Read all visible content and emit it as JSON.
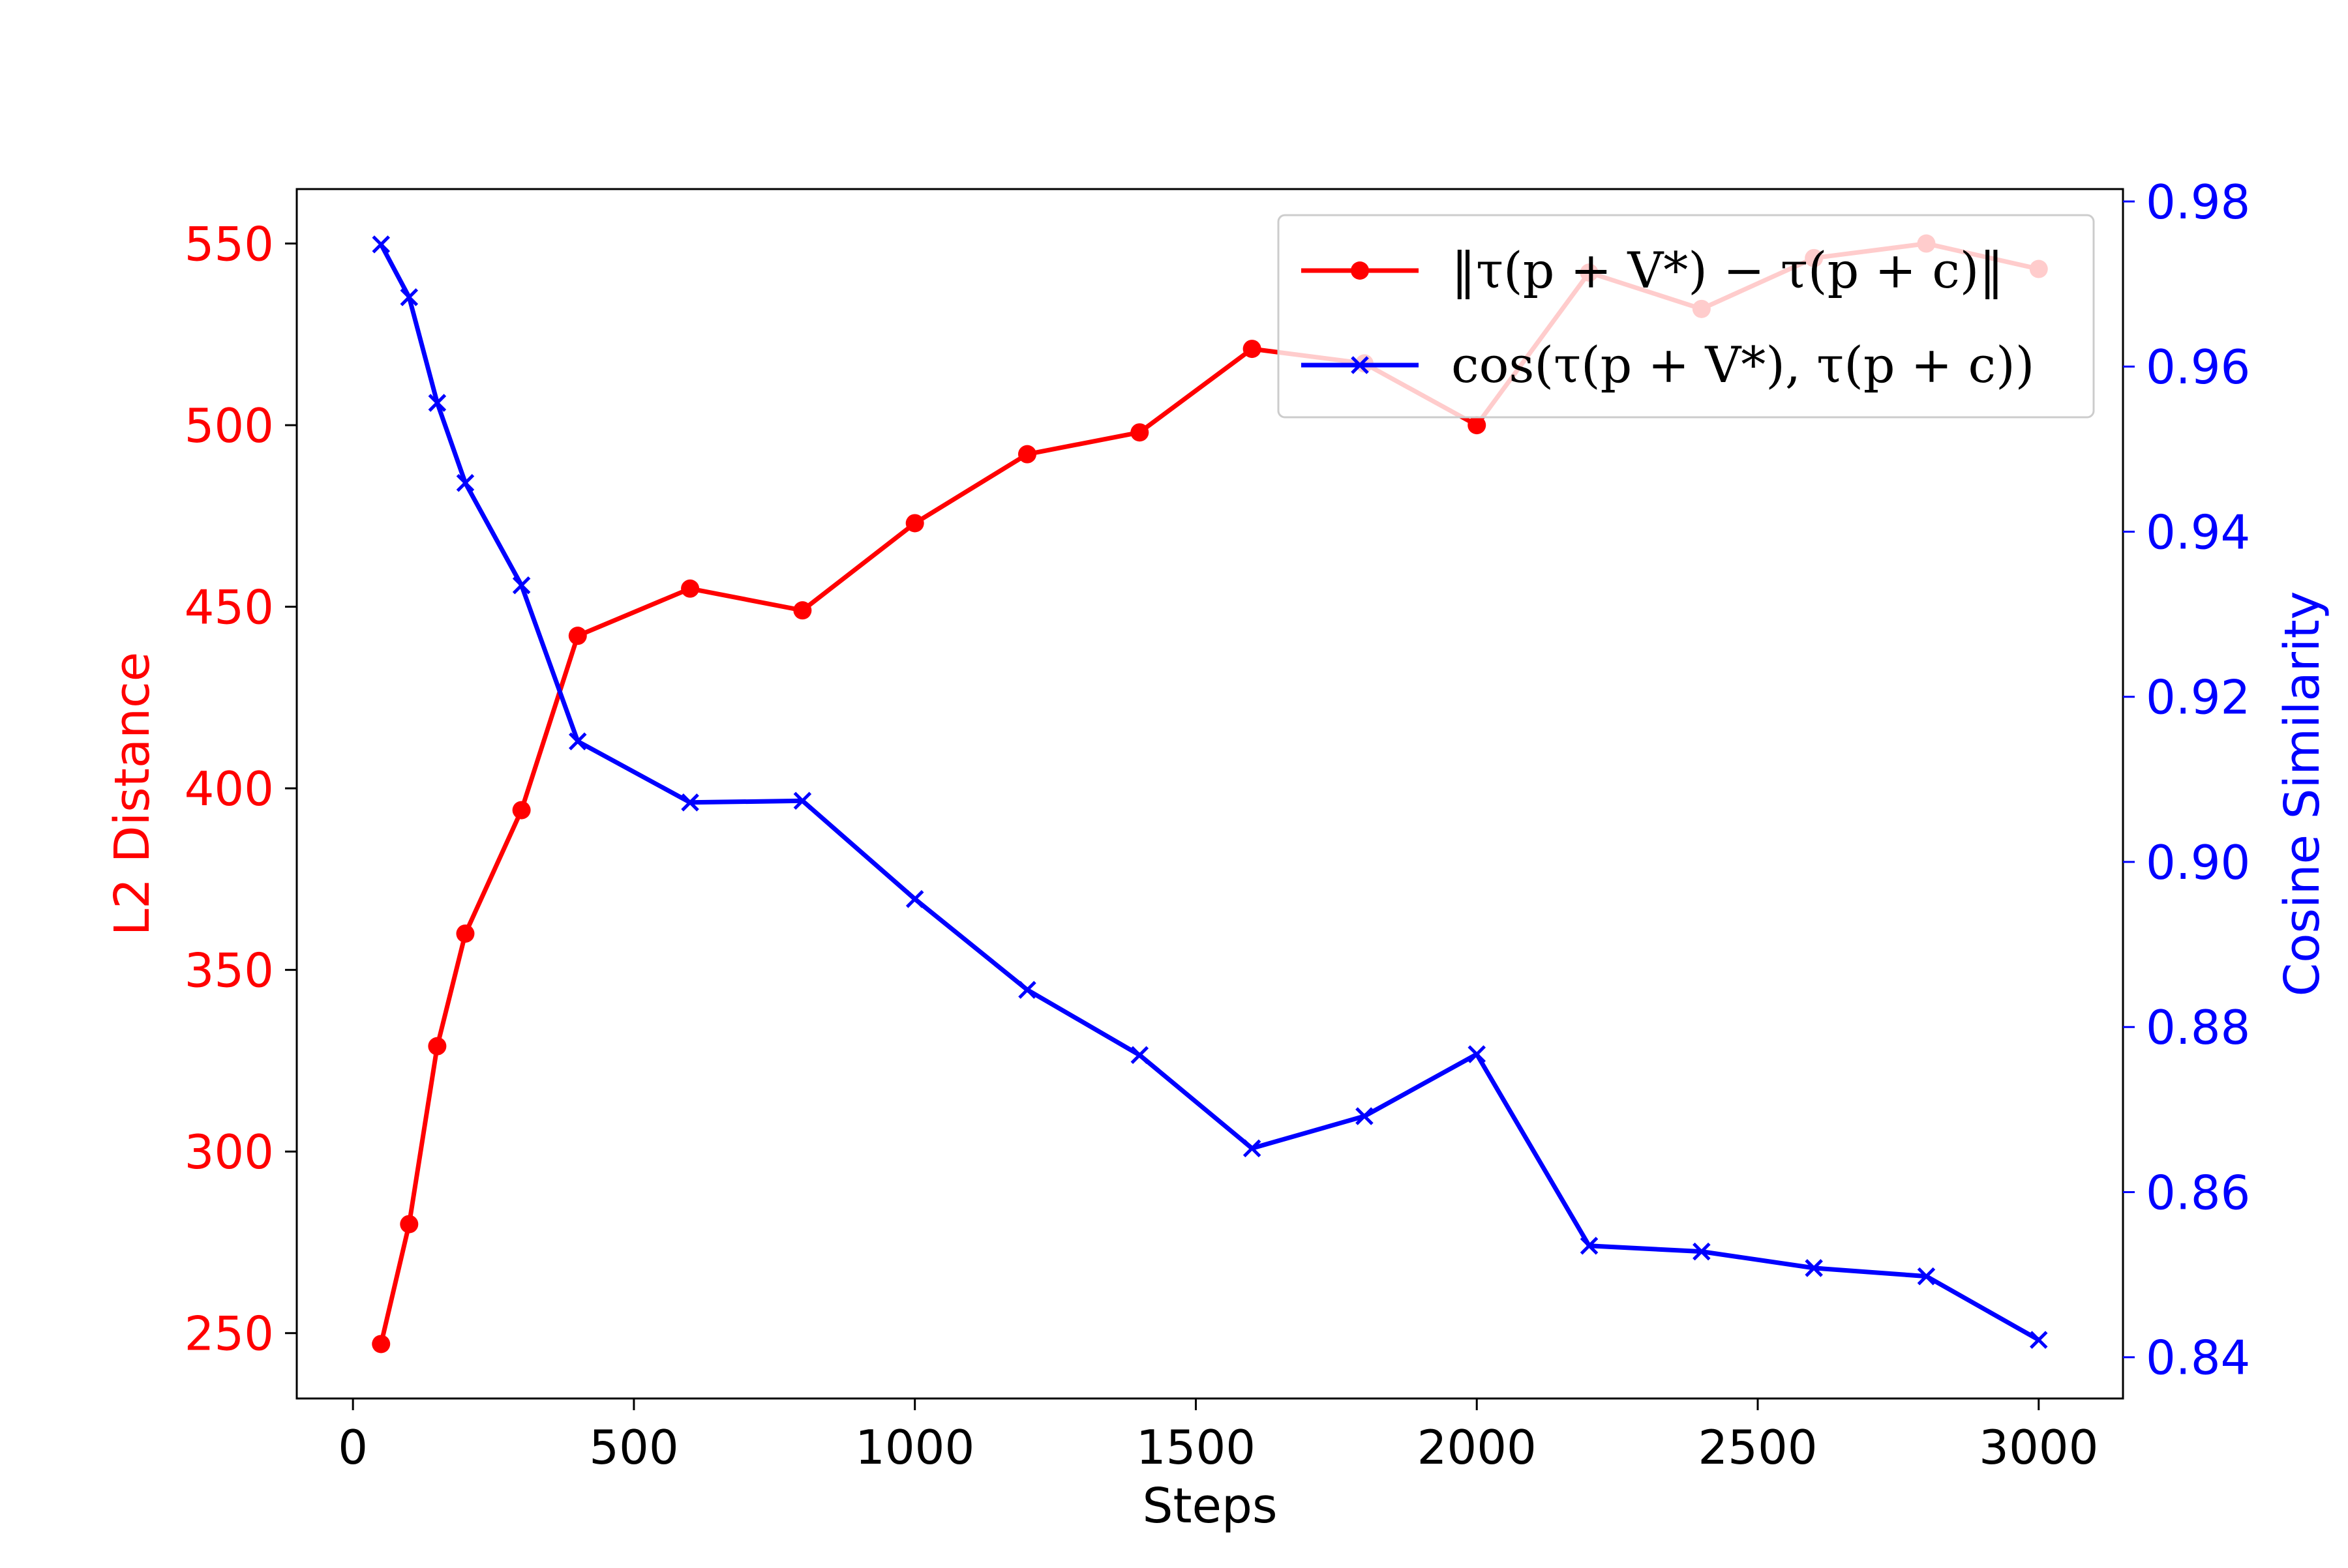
{
  "chart_data": {
    "type": "line",
    "xlabel": "Steps",
    "ylabel_left": "L2 Distance",
    "ylabel_right": "Cosine Similarity",
    "xlim": [
      -100,
      3150
    ],
    "ylim_left": [
      232,
      565
    ],
    "ylim_right": [
      0.835,
      0.9815
    ],
    "x_ticks": [
      "0",
      "500",
      "1000",
      "1500",
      "2000",
      "2500",
      "3000"
    ],
    "y_left_ticks": [
      "250",
      "300",
      "350",
      "400",
      "450",
      "500",
      "550"
    ],
    "y_right_ticks": [
      "0.84",
      "0.86",
      "0.88",
      "0.90",
      "0.92",
      "0.94",
      "0.96",
      "0.98"
    ],
    "grid": false,
    "legend_position": "top-right",
    "colors": {
      "left_series": "#ff0000",
      "right_series": "#0000ff",
      "left_axis": "#ff0000",
      "right_axis": "#0000ff"
    },
    "series": [
      {
        "name": "‖τ(p + V*) − τ(p + c)‖",
        "axis": "left",
        "marker": "circle",
        "x": [
          50,
          100,
          150,
          200,
          300,
          400,
          600,
          800,
          1000,
          1200,
          1400,
          1600,
          1800,
          2000,
          2200,
          2400,
          2600,
          2800,
          3000
        ],
        "values": [
          247,
          280,
          329,
          360,
          394,
          442,
          455,
          449,
          473,
          492,
          498,
          521,
          517,
          500,
          542,
          532,
          546,
          550,
          543
        ]
      },
      {
        "name": "cos(τ(p + V*), τ(p + c))",
        "axis": "right",
        "marker": "x",
        "x": [
          50,
          100,
          150,
          200,
          300,
          400,
          600,
          800,
          1000,
          1200,
          1400,
          1600,
          1800,
          2000,
          2200,
          2400,
          2600,
          2800,
          3000
        ],
        "values": [
          0.9748,
          0.9684,
          0.9556,
          0.9459,
          0.9335,
          0.9146,
          0.9072,
          0.9074,
          0.8955,
          0.8845,
          0.8766,
          0.8653,
          0.8692,
          0.8767,
          0.8535,
          0.8528,
          0.8508,
          0.8498,
          0.8421
        ]
      }
    ],
    "legend": {
      "entries": [
        {
          "math": "‖τ(p + V*) − τ(p + c)‖"
        },
        {
          "math": "cos(τ(p + V*), τ(p + c))"
        }
      ]
    }
  }
}
